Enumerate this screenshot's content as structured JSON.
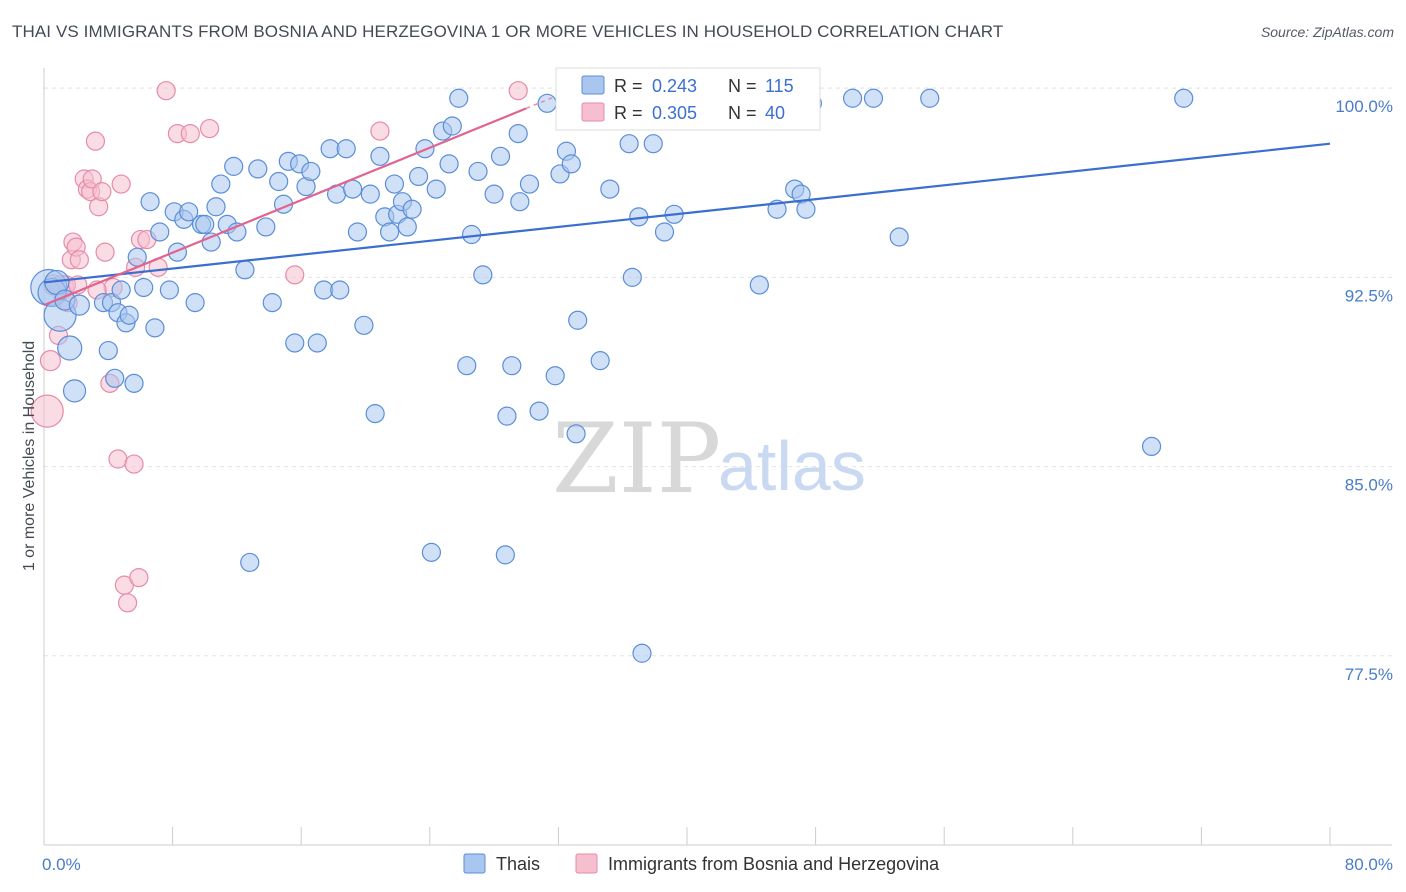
{
  "title": "THAI VS IMMIGRANTS FROM BOSNIA AND HERZEGOVINA 1 OR MORE VEHICLES IN HOUSEHOLD CORRELATION CHART",
  "source": "Source: ZipAtlas.com",
  "watermark": {
    "zip": "ZIP",
    "atlas": "atlas"
  },
  "colors": {
    "thai_fill": "#a9c6ef",
    "thai_stroke": "#5b8ed8",
    "thai_line": "#3a6fcf",
    "bosnia_fill": "#f6bfd0",
    "bosnia_stroke": "#e68ba9",
    "bosnia_line": "#e0648f"
  },
  "stats": [
    {
      "r_label": "R =",
      "r_value": "0.243",
      "n_label": "N =",
      "n_value": "115"
    },
    {
      "r_label": "R =",
      "r_value": "0.305",
      "n_label": "N =",
      "n_value": "40"
    }
  ],
  "chart_data": {
    "type": "scatter",
    "xlabel": "",
    "ylabel": "1 or more Vehicles in Household",
    "xlim": [
      0,
      80
    ],
    "ylim": [
      70,
      100.8
    ],
    "x_tick_labels": [
      "0.0%",
      "80.0%"
    ],
    "y_ticks": [
      77.5,
      85.0,
      92.5,
      100.0
    ],
    "y_tick_labels": [
      "77.5%",
      "85.0%",
      "92.5%",
      "100.0%"
    ],
    "grid": true,
    "legend_position": "bottom-center",
    "series": [
      {
        "name": "Thais",
        "r": 0.243,
        "n": 115,
        "trend": {
          "x0": 0,
          "y0": 92.3,
          "x1": 80,
          "y1": 97.8
        },
        "points": [
          [
            0.3,
            92.1,
            18
          ],
          [
            0.5,
            91.9,
            14
          ],
          [
            0.8,
            92.3,
            12
          ],
          [
            1.0,
            91.0,
            16
          ],
          [
            1.3,
            91.6,
            10
          ],
          [
            1.6,
            89.7,
            12
          ],
          [
            1.9,
            88.0,
            11
          ],
          [
            2.2,
            91.4,
            10
          ],
          [
            3.7,
            91.5,
            9
          ],
          [
            4.0,
            89.6,
            9
          ],
          [
            4.2,
            91.5,
            9
          ],
          [
            4.4,
            88.5,
            9
          ],
          [
            4.6,
            91.1,
            9
          ],
          [
            4.8,
            92.0,
            9
          ],
          [
            5.1,
            90.7,
            9
          ],
          [
            5.3,
            91.0,
            9
          ],
          [
            5.6,
            88.3,
            9
          ],
          [
            5.8,
            93.3,
            9
          ],
          [
            6.2,
            92.1,
            9
          ],
          [
            6.6,
            95.5,
            9
          ],
          [
            6.9,
            90.5,
            9
          ],
          [
            7.2,
            94.3,
            9
          ],
          [
            7.8,
            92.0,
            9
          ],
          [
            8.1,
            95.1,
            9
          ],
          [
            8.3,
            93.5,
            9
          ],
          [
            8.7,
            94.8,
            9
          ],
          [
            9.0,
            95.1,
            9
          ],
          [
            9.4,
            91.5,
            9
          ],
          [
            9.8,
            94.6,
            9
          ],
          [
            10.0,
            94.6,
            9
          ],
          [
            10.4,
            93.9,
            9
          ],
          [
            10.7,
            95.3,
            9
          ],
          [
            11.0,
            96.2,
            9
          ],
          [
            11.4,
            94.6,
            9
          ],
          [
            11.8,
            96.9,
            9
          ],
          [
            12.0,
            94.3,
            9
          ],
          [
            12.5,
            92.8,
            9
          ],
          [
            13.3,
            96.8,
            9
          ],
          [
            13.8,
            94.5,
            9
          ],
          [
            14.2,
            91.5,
            9
          ],
          [
            14.6,
            96.3,
            9
          ],
          [
            14.9,
            95.4,
            9
          ],
          [
            15.2,
            97.1,
            9
          ],
          [
            15.6,
            89.9,
            9
          ],
          [
            15.9,
            97.0,
            9
          ],
          [
            16.3,
            96.1,
            9
          ],
          [
            16.6,
            96.7,
            9
          ],
          [
            17.0,
            89.9,
            9
          ],
          [
            17.4,
            92.0,
            9
          ],
          [
            17.8,
            97.6,
            9
          ],
          [
            18.2,
            95.8,
            9
          ],
          [
            18.4,
            92.0,
            9
          ],
          [
            18.8,
            97.6,
            9
          ],
          [
            19.2,
            96.0,
            9
          ],
          [
            19.5,
            94.3,
            9
          ],
          [
            19.9,
            90.6,
            9
          ],
          [
            20.3,
            95.8,
            9
          ],
          [
            20.6,
            87.1,
            9
          ],
          [
            20.9,
            97.3,
            9
          ],
          [
            21.2,
            94.9,
            9
          ],
          [
            21.5,
            94.3,
            9
          ],
          [
            21.8,
            96.2,
            9
          ],
          [
            22.0,
            95.0,
            9
          ],
          [
            22.3,
            95.5,
            9
          ],
          [
            22.6,
            94.5,
            9
          ],
          [
            22.9,
            95.2,
            9
          ],
          [
            23.3,
            96.5,
            9
          ],
          [
            23.7,
            97.6,
            9
          ],
          [
            24.1,
            81.6,
            9
          ],
          [
            24.4,
            96.0,
            9
          ],
          [
            24.8,
            98.3,
            9
          ],
          [
            25.2,
            97.0,
            9
          ],
          [
            25.4,
            98.5,
            9
          ],
          [
            25.8,
            99.6,
            9
          ],
          [
            26.3,
            89.0,
            9
          ],
          [
            26.6,
            94.2,
            9
          ],
          [
            27.0,
            96.7,
            9
          ],
          [
            27.3,
            92.6,
            9
          ],
          [
            28.0,
            95.8,
            9
          ],
          [
            28.4,
            97.3,
            9
          ],
          [
            28.8,
            87.0,
            9
          ],
          [
            29.1,
            89.0,
            9
          ],
          [
            29.5,
            98.2,
            9
          ],
          [
            29.6,
            95.5,
            9
          ],
          [
            30.2,
            96.2,
            9
          ],
          [
            30.8,
            87.2,
            9
          ],
          [
            31.3,
            99.4,
            9
          ],
          [
            31.8,
            88.6,
            9
          ],
          [
            32.1,
            96.6,
            9
          ],
          [
            32.5,
            97.5,
            9
          ],
          [
            32.8,
            97.0,
            9
          ],
          [
            33.1,
            86.3,
            9
          ],
          [
            33.2,
            90.8,
            9
          ],
          [
            34.6,
            89.2,
            9
          ],
          [
            35.2,
            96.0,
            9
          ],
          [
            36.4,
            97.8,
            9
          ],
          [
            36.6,
            92.5,
            9
          ],
          [
            37.0,
            94.9,
            9
          ],
          [
            37.3,
            99.6,
            9
          ],
          [
            37.9,
            97.8,
            9
          ],
          [
            38.6,
            94.3,
            9
          ],
          [
            39.2,
            95.0,
            9
          ],
          [
            40.5,
            99.5,
            9
          ],
          [
            42.1,
            99.6,
            9
          ],
          [
            44.5,
            92.2,
            9
          ],
          [
            45.6,
            95.2,
            9
          ],
          [
            46.7,
            96.0,
            9
          ],
          [
            47.1,
            95.8,
            9
          ],
          [
            47.4,
            95.2,
            9
          ],
          [
            47.8,
            99.4,
            9
          ],
          [
            50.3,
            99.6,
            9
          ],
          [
            51.6,
            99.6,
            9
          ],
          [
            53.2,
            94.1,
            9
          ],
          [
            55.1,
            99.6,
            9
          ],
          [
            68.9,
            85.8,
            9
          ],
          [
            70.9,
            99.6,
            9
          ],
          [
            37.2,
            77.6,
            9
          ],
          [
            28.7,
            81.5,
            9
          ],
          [
            12.8,
            81.2,
            9
          ]
        ]
      },
      {
        "name": "Immigrants from Bosnia and Herzegovina",
        "r": 0.305,
        "n": 40,
        "trend": {
          "x0": 0,
          "y0": 91.4,
          "x1": 30.0,
          "y1": 99.2
        },
        "points": [
          [
            0.2,
            87.2,
            16
          ],
          [
            0.4,
            89.2,
            10
          ],
          [
            0.6,
            92.2,
            10
          ],
          [
            0.9,
            90.2,
            9
          ],
          [
            1.1,
            92.1,
            12
          ],
          [
            1.4,
            92.2,
            9
          ],
          [
            1.5,
            91.5,
            9
          ],
          [
            1.7,
            93.2,
            9
          ],
          [
            1.8,
            93.9,
            9
          ],
          [
            2.0,
            93.7,
            9
          ],
          [
            2.2,
            93.2,
            9
          ],
          [
            2.5,
            96.4,
            9
          ],
          [
            2.7,
            96.0,
            9
          ],
          [
            2.9,
            95.9,
            9
          ],
          [
            3.0,
            96.4,
            9
          ],
          [
            3.2,
            97.9,
            9
          ],
          [
            3.4,
            95.3,
            9
          ],
          [
            3.6,
            95.9,
            9
          ],
          [
            3.8,
            93.5,
            9
          ],
          [
            4.1,
            88.3,
            9
          ],
          [
            4.3,
            92.1,
            9
          ],
          [
            4.6,
            85.3,
            9
          ],
          [
            4.8,
            96.2,
            9
          ],
          [
            5.0,
            80.3,
            9
          ],
          [
            5.2,
            79.6,
            9
          ],
          [
            5.6,
            85.1,
            9
          ],
          [
            5.9,
            80.6,
            9
          ],
          [
            5.7,
            92.9,
            9
          ],
          [
            6.0,
            94.0,
            9
          ],
          [
            6.4,
            94.0,
            9
          ],
          [
            7.1,
            92.9,
            9
          ],
          [
            7.6,
            99.9,
            9
          ],
          [
            8.3,
            98.2,
            9
          ],
          [
            9.1,
            98.2,
            9
          ],
          [
            10.3,
            98.4,
            9
          ],
          [
            15.6,
            92.6,
            9
          ],
          [
            20.9,
            98.3,
            9
          ],
          [
            29.5,
            99.9,
            9
          ],
          [
            3.3,
            92.0,
            9
          ],
          [
            2.1,
            92.2,
            9
          ]
        ]
      }
    ]
  }
}
